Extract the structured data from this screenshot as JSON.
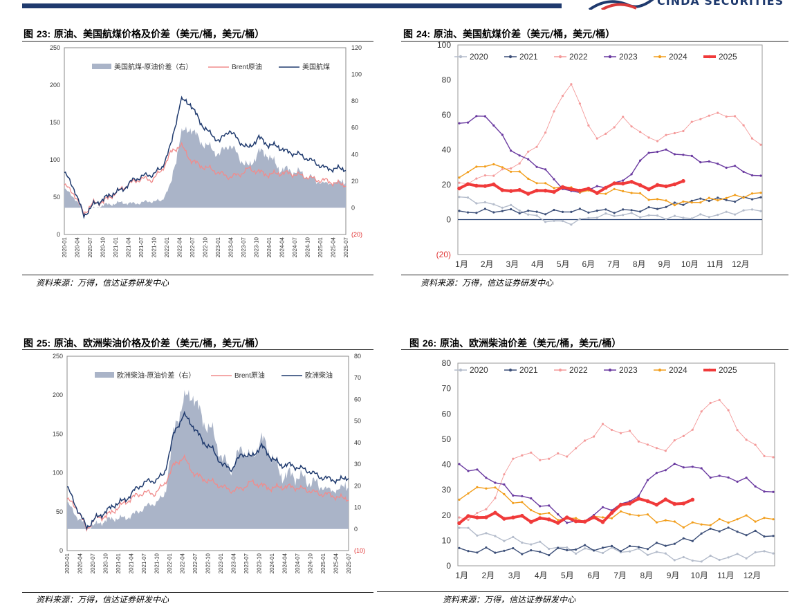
{
  "header": {
    "logo_text": "CINDA SECURITIES"
  },
  "colors": {
    "navy": "#1f3a6e",
    "spread": "#aab4c8",
    "brent": "#f08c8c",
    "c2020": "#b4bccb",
    "c2021": "#3c4f78",
    "c2022": "#f49a9a",
    "c2023": "#6a3aa0",
    "c2024": "#f29e1c",
    "c2025": "#f03a3a"
  },
  "panels": [
    {
      "title_prefix": "图 ",
      "fig_num": "23:",
      "title_text": " 原油、美国航煤价格及价差（美元/桶，美元/桶）",
      "source": "资料来源：万得，信达证券研发中心"
    },
    {
      "title_prefix": "图 ",
      "fig_num": "24:",
      "title_text": " 原油、美国航煤价差（美元/桶，美元/桶）",
      "source": "资料来源：万得，信达证券研发中心"
    },
    {
      "title_prefix": "图 ",
      "fig_num": "25:",
      "title_text": " 原油、欧洲柴油价格及价差（美元/桶，美元/桶）",
      "source": "资料来源：万得，信达证券研发中心"
    },
    {
      "title_prefix": "图 ",
      "fig_num": "26:",
      "title_text": " 原油、欧洲柴油价差（美元/桶，美元/桶）",
      "source": "资料来源：万得，信达证券研发中心"
    }
  ],
  "chart_data": [
    {
      "type": "area+line",
      "title": "原油、美国航煤价格及价差",
      "x_ticks": [
        "2020-01",
        "2020-04",
        "2020-07",
        "2020-10",
        "2021-01",
        "2021-04",
        "2021-07",
        "2021-10",
        "2022-01",
        "2022-04",
        "2022-07",
        "2022-10",
        "2023-01",
        "2023-04",
        "2023-07",
        "2023-10",
        "2024-01",
        "2024-04",
        "2024-07",
        "2024-10",
        "2025-01",
        "2025-04",
        "2025-07"
      ],
      "y_left_ticks": [
        "0",
        "50",
        "100",
        "150",
        "200",
        "250"
      ],
      "y_right_ticks": [
        "(20)",
        "0",
        "20",
        "40",
        "60",
        "80",
        "100",
        "120"
      ],
      "ylim_left": [
        0,
        250
      ],
      "ylim_right": [
        -20,
        120
      ],
      "legend": [
        "美国航煤-原油价差（右）",
        "Brent原油",
        "美国航煤"
      ],
      "series": [
        {
          "name": "美国航煤",
          "axis": "left",
          "values": [
            83,
            62,
            25,
            40,
            47,
            55,
            60,
            72,
            78,
            80,
            88,
            120,
            180,
            175,
            150,
            135,
            125,
            140,
            125,
            115,
            130,
            120,
            118,
            110,
            108,
            102,
            95,
            88,
            88,
            88
          ]
        },
        {
          "name": "Brent原油",
          "axis": "left",
          "values": [
            66,
            55,
            28,
            42,
            44,
            53,
            62,
            70,
            75,
            73,
            85,
            110,
            120,
            100,
            92,
            88,
            82,
            77,
            80,
            88,
            84,
            80,
            82,
            82,
            80,
            77,
            73,
            72,
            68,
            67
          ]
        },
        {
          "name": "美国航煤-原油价差（右）",
          "axis": "right",
          "values": [
            14,
            8,
            -3,
            -1,
            2,
            3,
            4,
            3,
            4,
            5,
            5,
            18,
            55,
            60,
            50,
            45,
            40,
            48,
            38,
            30,
            42,
            40,
            30,
            28,
            27,
            24,
            20,
            18,
            19,
            21
          ]
        }
      ]
    },
    {
      "type": "line",
      "title": "原油、美国航煤价差",
      "categories": [
        "1月",
        "2月",
        "3月",
        "4月",
        "5月",
        "6月",
        "7月",
        "8月",
        "9月",
        "10月",
        "11月",
        "12月"
      ],
      "y_ticks": [
        "(20)",
        "0",
        "20",
        "40",
        "60",
        "80",
        "100"
      ],
      "ylim": [
        -20,
        100
      ],
      "series": [
        {
          "name": "2020",
          "values": [
            13,
            9,
            7,
            0,
            -2,
            2,
            3,
            2,
            1,
            2,
            4,
            6
          ]
        },
        {
          "name": "2021",
          "values": [
            4,
            5,
            5,
            4,
            5,
            5,
            5,
            6,
            9,
            12,
            11,
            13
          ]
        },
        {
          "name": "2022",
          "values": [
            20,
            25,
            30,
            45,
            80,
            45,
            58,
            45,
            50,
            60,
            60,
            42
          ]
        },
        {
          "name": "2023",
          "values": [
            55,
            60,
            38,
            30,
            15,
            18,
            22,
            40,
            38,
            33,
            30,
            24
          ]
        },
        {
          "name": "2024",
          "values": [
            25,
            32,
            28,
            20,
            18,
            15,
            17,
            12,
            9,
            11,
            13,
            15
          ]
        },
        {
          "name": "2025",
          "values": [
            19,
            20,
            16,
            16,
            18,
            16,
            22,
            18,
            21,
            null,
            null,
            null
          ]
        }
      ]
    },
    {
      "type": "area+line",
      "title": "原油、欧洲柴油价格及价差",
      "x_ticks": [
        "2020-01",
        "2020-04",
        "2020-07",
        "2020-10",
        "2021-01",
        "2021-04",
        "2021-07",
        "2021-10",
        "2022-01",
        "2022-04",
        "2022-07",
        "2022-10",
        "2023-01",
        "2023-04",
        "2023-07",
        "2023-10",
        "2024-01",
        "2024-04",
        "2024-07",
        "2024-10",
        "2025-01",
        "2025-04",
        "2025-07"
      ],
      "y_left_ticks": [
        "0",
        "50",
        "100",
        "150",
        "200",
        "250"
      ],
      "y_right_ticks": [
        "(10)",
        "0",
        "10",
        "20",
        "30",
        "40",
        "50",
        "60",
        "70",
        "80"
      ],
      "ylim_left": [
        0,
        250
      ],
      "ylim_right": [
        -10,
        80
      ],
      "legend": [
        "欧洲柴油-原油价差（右）",
        "Brent原油",
        "欧洲柴油"
      ],
      "series": [
        {
          "name": "欧洲柴油",
          "axis": "left",
          "values": [
            82,
            55,
            30,
            42,
            50,
            60,
            65,
            78,
            88,
            90,
            98,
            150,
            175,
            160,
            140,
            130,
            110,
            105,
            125,
            120,
            135,
            120,
            110,
            110,
            106,
            102,
            95,
            92,
            90,
            95
          ]
        },
        {
          "name": "Brent原油",
          "axis": "left",
          "values": [
            66,
            55,
            28,
            42,
            44,
            53,
            62,
            70,
            75,
            73,
            85,
            110,
            120,
            100,
            92,
            88,
            82,
            77,
            80,
            88,
            84,
            80,
            82,
            82,
            80,
            77,
            73,
            72,
            68,
            67
          ]
        },
        {
          "name": "欧洲柴油-原油价差（右）",
          "axis": "right",
          "values": [
            12,
            6,
            1,
            2,
            4,
            5,
            5,
            7,
            10,
            12,
            15,
            45,
            60,
            62,
            50,
            45,
            32,
            28,
            38,
            32,
            42,
            35,
            25,
            25,
            24,
            22,
            20,
            18,
            18,
            22
          ]
        }
      ]
    },
    {
      "type": "line",
      "title": "原油、欧洲柴油价差",
      "categories": [
        "1月",
        "2月",
        "3月",
        "4月",
        "5月",
        "6月",
        "7月",
        "8月",
        "9月",
        "10月",
        "11月",
        "12月"
      ],
      "y_ticks": [
        "0",
        "10",
        "20",
        "30",
        "40",
        "50",
        "60",
        "70",
        "80"
      ],
      "ylim": [
        0,
        80
      ],
      "series": [
        {
          "name": "2020",
          "values": [
            15,
            12,
            10,
            8,
            6,
            6,
            6,
            5,
            2,
            3,
            4,
            6
          ]
        },
        {
          "name": "2021",
          "values": [
            6,
            6,
            6,
            5,
            7,
            7,
            7,
            8,
            10,
            15,
            13,
            12
          ]
        },
        {
          "name": "2022",
          "values": [
            18,
            22,
            45,
            42,
            45,
            55,
            52,
            45,
            52,
            68,
            50,
            42
          ]
        },
        {
          "name": "2023",
          "values": [
            40,
            35,
            28,
            24,
            16,
            22,
            25,
            38,
            40,
            35,
            34,
            28
          ]
        },
        {
          "name": "2024",
          "values": [
            27,
            32,
            25,
            20,
            18,
            19,
            21,
            18,
            16,
            17,
            19,
            18
          ]
        },
        {
          "name": "2025",
          "values": [
            18,
            20,
            19,
            18,
            18,
            18,
            26,
            25,
            25,
            null,
            null,
            null
          ]
        }
      ]
    }
  ]
}
